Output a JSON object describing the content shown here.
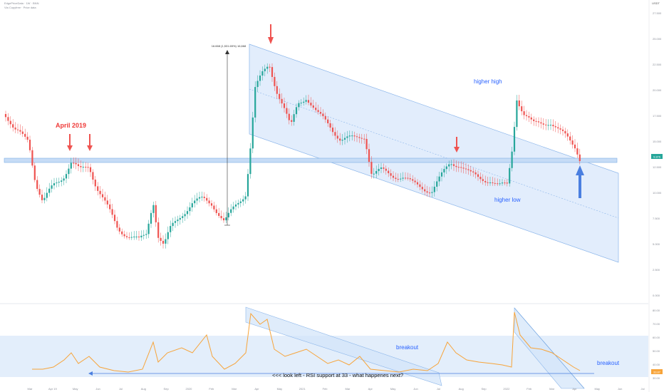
{
  "header": {
    "symbol_line": "EdgePriceData · 1W · BNN",
    "sub_line": "Via Copyfree · Price data",
    "currency": "USDT"
  },
  "colors": {
    "up": "#26a69a",
    "down": "#ef5350",
    "channel_fill": "#cfe2f9",
    "channel_line": "#5b9bd5",
    "rsi_line": "#f7a43a",
    "arrow_red": "#ef5350",
    "arrow_blue": "#4a7fe0",
    "annotation_blue": "#2962ff",
    "annotation_red": "#ef3b39"
  },
  "annotations": {
    "april": "April 2019",
    "higher_high": "higher high",
    "higher_low": "higher low",
    "breakout_1": "breakout",
    "breakout_2": "breakout",
    "measure": "16.668 (1,531.65%) 16,668",
    "rsi_note": "<<< look left - RSI support at 33 - what happenes next?"
  },
  "chart_data": {
    "type": "candlestick",
    "title": "",
    "panels": [
      "price",
      "rsi"
    ],
    "price_axis": {
      "labels": [
        "27.500",
        "25.000",
        "22.500",
        "20.000",
        "17.500",
        "15.000",
        "12.500",
        "10.000",
        "7.500",
        "5.000",
        "2.500",
        "0.000"
      ]
    },
    "rsi_axis": {
      "labels": [
        "80.00",
        "70.00",
        "60.00",
        "50.00",
        "40.00",
        "30.00"
      ],
      "support_level": 33
    },
    "x_labels": [
      "Mar",
      "Apr 19",
      "May",
      "Jun",
      "Jul",
      "Aug",
      "Sep",
      "2020",
      "Feb",
      "Mar",
      "Apr",
      "May",
      "2021",
      "Feb",
      "Mar",
      "Apr",
      "May",
      "Jun",
      "Jul",
      "Aug",
      "Sep",
      "2022",
      "Feb",
      "Mar",
      "Apr",
      "May",
      "Jun",
      "Jul"
    ],
    "current_price": "9.876",
    "current_rsi": "33.87"
  }
}
